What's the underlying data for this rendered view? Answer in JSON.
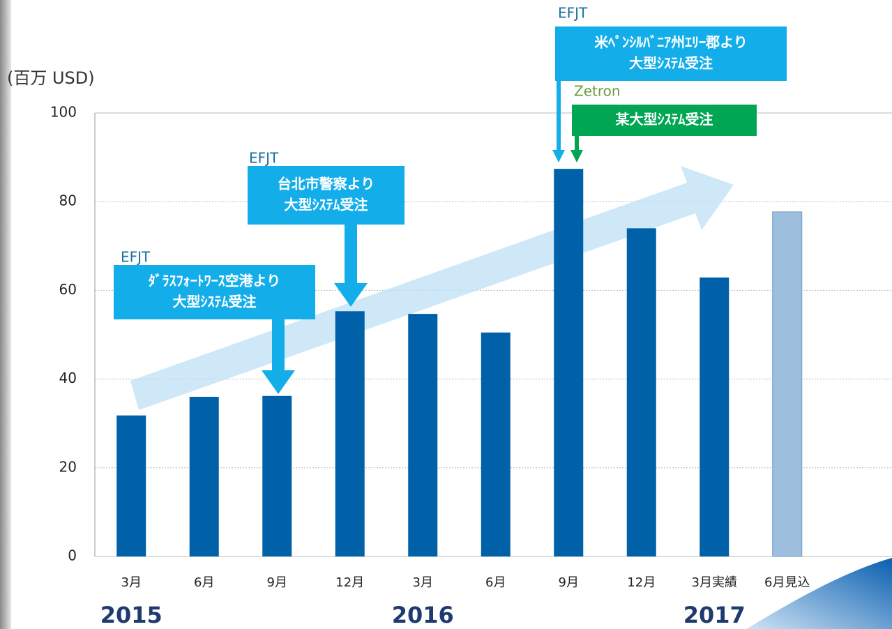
{
  "chart_data": {
    "type": "bar",
    "y_axis_label": "(百万 USD)",
    "categories": [
      "3月",
      "6月",
      "9月",
      "12月",
      "3月",
      "6月",
      "9月",
      "12月",
      "3月実績",
      "6月見込"
    ],
    "values": [
      31.8,
      36,
      36.2,
      55.3,
      54.7,
      50.5,
      87.4,
      74,
      62.9,
      77.7
    ],
    "colors": [
      "#0060a8",
      "#0060a8",
      "#0060a8",
      "#0060a8",
      "#0060a8",
      "#0060a8",
      "#0060a8",
      "#0060a8",
      "#0060a8",
      "#9dbfdd"
    ],
    "ylim": [
      0,
      100
    ],
    "yticks": [
      0,
      20,
      40,
      60,
      80,
      100
    ],
    "grid": true,
    "years": [
      "2015",
      "2016",
      "2017"
    ],
    "annotations": [
      {
        "company": "EFJT",
        "lines": [
          "ﾀﾞﾗｽﾌｫｰﾄﾜｰｽ空港より",
          "大型ｼｽﾃﾑ受注"
        ],
        "company_color": "#1a6fa0",
        "box_color": "#13aeea"
      },
      {
        "company": "EFJT",
        "lines": [
          "台北市警察より",
          "大型ｼｽﾃﾑ受注"
        ],
        "company_color": "#1a6fa0",
        "box_color": "#13aeea"
      },
      {
        "company": "EFJT",
        "lines": [
          "米ﾍﾟﾝｼﾙﾊﾞﾆｱ州ｴﾘｰ郡より",
          "大型ｼｽﾃﾑ受注"
        ],
        "company_color": "#1a6fa0",
        "box_color": "#13aeea"
      },
      {
        "company": "Zetron",
        "lines": [
          "某大型ｼｽﾃﾑ受注"
        ],
        "company_color": "#6b9a3a",
        "box_color": "#00a651"
      }
    ]
  }
}
